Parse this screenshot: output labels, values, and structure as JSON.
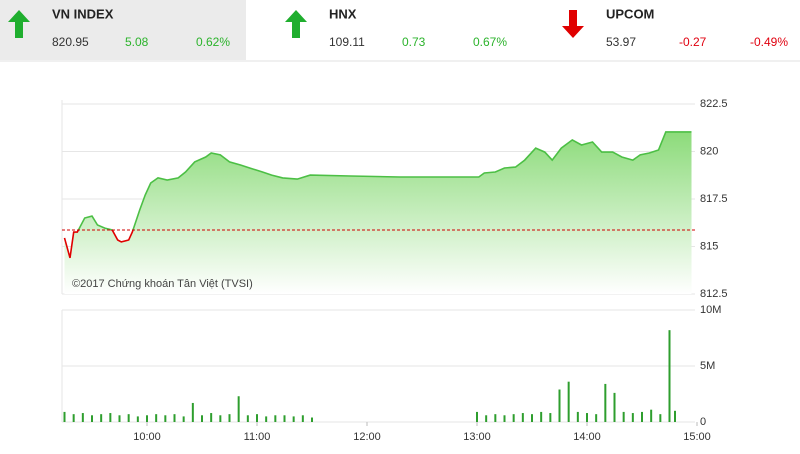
{
  "header": {
    "indices": [
      {
        "name": "VN INDEX",
        "value": "820.95",
        "change": "5.08",
        "percent": "0.62%"
      },
      {
        "name": "HNX",
        "value": "109.11",
        "change": "0.73",
        "percent": "0.67%"
      },
      {
        "name": "UPCOM",
        "value": "53.97",
        "change": "-0.27",
        "percent": "-0.49%"
      }
    ]
  },
  "chart_data": [
    {
      "type": "area",
      "annotation": "©2017 Chứng khoán Tân Việt (TVSI)",
      "reference": 815.87,
      "reference_color": "#d00000",
      "color": "#4cbf45",
      "below_color": "#e00000",
      "x": [
        555,
        558,
        560,
        562,
        566,
        570,
        573,
        577,
        581,
        584,
        586,
        590,
        592,
        596,
        599,
        602,
        606,
        611,
        617,
        621,
        626,
        632,
        635,
        640,
        645,
        651,
        656,
        663,
        668,
        674,
        682,
        689,
        711,
        738,
        765,
        781,
        784,
        790,
        795,
        801,
        806,
        812,
        817,
        821,
        826,
        832,
        837,
        843,
        848,
        854,
        859,
        865,
        869,
        874,
        879,
        883,
        887,
        897
      ],
      "values": [
        815.45,
        814.4,
        815.76,
        815.76,
        816.5,
        816.6,
        816.13,
        815.97,
        815.87,
        815.34,
        815.24,
        815.34,
        815.76,
        816.92,
        817.71,
        818.34,
        818.61,
        818.5,
        818.61,
        818.92,
        819.45,
        819.71,
        819.92,
        819.82,
        819.45,
        819.29,
        819.13,
        818.92,
        818.76,
        818.61,
        818.55,
        818.76,
        818.71,
        818.66,
        818.66,
        818.66,
        818.87,
        818.92,
        819.13,
        819.18,
        819.55,
        820.18,
        819.97,
        819.55,
        820.18,
        820.61,
        820.34,
        820.5,
        819.97,
        819.97,
        819.71,
        819.55,
        819.82,
        819.92,
        820.08,
        821.03,
        821.03,
        821.03
      ],
      "xlim": [
        555,
        900
      ],
      "ylim": [
        812.5,
        822.5
      ],
      "yticks": [
        812.5,
        815,
        817.5,
        820,
        822.5
      ],
      "grid": true
    },
    {
      "type": "bar",
      "color": "#2e9e2e",
      "x": [
        555,
        560,
        565,
        570,
        575,
        580,
        585,
        590,
        595,
        600,
        605,
        610,
        615,
        620,
        625,
        630,
        635,
        640,
        645,
        650,
        655,
        660,
        665,
        670,
        675,
        680,
        685,
        690,
        780,
        785,
        790,
        795,
        800,
        805,
        810,
        815,
        820,
        825,
        830,
        835,
        840,
        845,
        850,
        855,
        860,
        865,
        870,
        875,
        880,
        885,
        888
      ],
      "values": [
        900000,
        700000,
        800000,
        600000,
        700000,
        800000,
        600000,
        700000,
        500000,
        600000,
        700000,
        600000,
        700000,
        500000,
        1700000,
        600000,
        800000,
        600000,
        700000,
        2300000,
        600000,
        700000,
        500000,
        600000,
        600000,
        500000,
        600000,
        400000,
        900000,
        600000,
        700000,
        600000,
        700000,
        800000,
        700000,
        900000,
        800000,
        2900000,
        3600000,
        900000,
        800000,
        700000,
        3400000,
        2600000,
        900000,
        800000,
        900000,
        1100000,
        700000,
        8200000,
        1000000
      ],
      "xlim": [
        555,
        900
      ],
      "xticks": [
        {
          "value": 600,
          "label": "10:00"
        },
        {
          "value": 660,
          "label": "11:00"
        },
        {
          "value": 720,
          "label": "12:00"
        },
        {
          "value": 780,
          "label": "13:00"
        },
        {
          "value": 840,
          "label": "14:00"
        },
        {
          "value": 900,
          "label": "15:00"
        }
      ],
      "ylim": [
        0,
        10000000
      ],
      "yticks": [
        0,
        {
          "value": 5000000,
          "label": "5M"
        },
        {
          "value": 10000000,
          "label": "10M"
        }
      ],
      "grid": true
    }
  ]
}
